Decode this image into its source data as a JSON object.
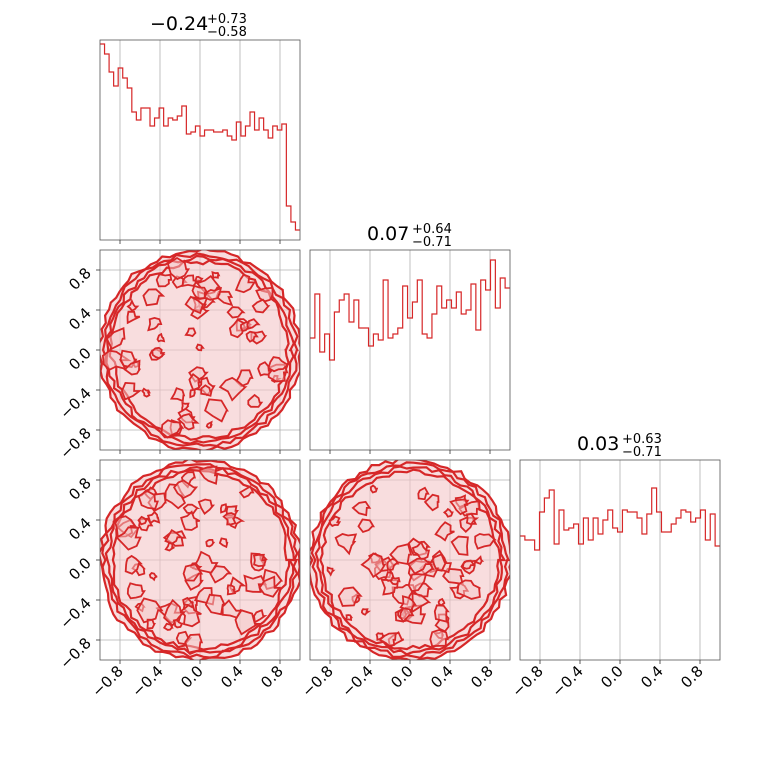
{
  "chart_data": {
    "type": "corner",
    "color": "#d62728",
    "fill_color": "#f4c7c8",
    "tick_labels": [
      "−0.8",
      "−0.4",
      "0.0",
      "0.4",
      "0.8"
    ],
    "tick_values": [
      -0.8,
      -0.4,
      0.0,
      0.4,
      0.8
    ],
    "xlim": [
      -1.0,
      1.0
    ],
    "grid": true,
    "parameters": [
      {
        "title_main": "−0.24",
        "title_plus": "+0.73",
        "title_minus": "−0.58",
        "histogram": [
          0.98,
          0.93,
          0.84,
          0.77,
          0.86,
          0.81,
          0.76,
          0.64,
          0.6,
          0.66,
          0.66,
          0.57,
          0.61,
          0.66,
          0.57,
          0.61,
          0.6,
          0.62,
          0.67,
          0.53,
          0.54,
          0.57,
          0.52,
          0.55,
          0.55,
          0.54,
          0.54,
          0.55,
          0.52,
          0.5,
          0.59,
          0.52,
          0.57,
          0.64,
          0.55,
          0.61,
          0.55,
          0.51,
          0.57,
          0.55,
          0.58,
          0.17,
          0.09,
          0.05
        ]
      },
      {
        "title_main": "0.07",
        "title_plus": "+0.64",
        "title_minus": "−0.71",
        "histogram": [
          0.56,
          0.78,
          0.49,
          0.58,
          0.45,
          0.69,
          0.75,
          0.78,
          0.64,
          0.75,
          0.61,
          0.61,
          0.52,
          0.58,
          0.55,
          0.85,
          0.56,
          0.58,
          0.61,
          0.82,
          0.66,
          0.74,
          0.85,
          0.58,
          0.56,
          0.68,
          0.82,
          0.71,
          0.75,
          0.71,
          0.79,
          0.68,
          0.7,
          0.83,
          0.6,
          0.85,
          0.8,
          0.95,
          0.71,
          0.86,
          0.81
        ]
      },
      {
        "title_main": "0.03",
        "title_plus": "+0.63",
        "title_minus": "−0.71",
        "histogram": [
          0.62,
          0.6,
          0.6,
          0.55,
          0.74,
          0.81,
          0.85,
          0.58,
          0.75,
          0.65,
          0.66,
          0.68,
          0.58,
          0.71,
          0.6,
          0.71,
          0.63,
          0.7,
          0.75,
          0.66,
          0.64,
          0.75,
          0.74,
          0.74,
          0.71,
          0.63,
          0.73,
          0.86,
          0.74,
          0.64,
          0.64,
          0.68,
          0.71,
          0.75,
          0.74,
          0.69,
          0.71,
          0.75,
          0.6,
          0.73,
          0.57
        ]
      }
    ],
    "pairs": [
      {
        "x_param": 0,
        "y_param": 1,
        "shape": "uniform-disk",
        "radius": 1.0
      },
      {
        "x_param": 0,
        "y_param": 2,
        "shape": "uniform-disk",
        "radius": 1.0
      },
      {
        "x_param": 1,
        "y_param": 2,
        "shape": "uniform-disk",
        "radius": 1.0
      }
    ]
  }
}
